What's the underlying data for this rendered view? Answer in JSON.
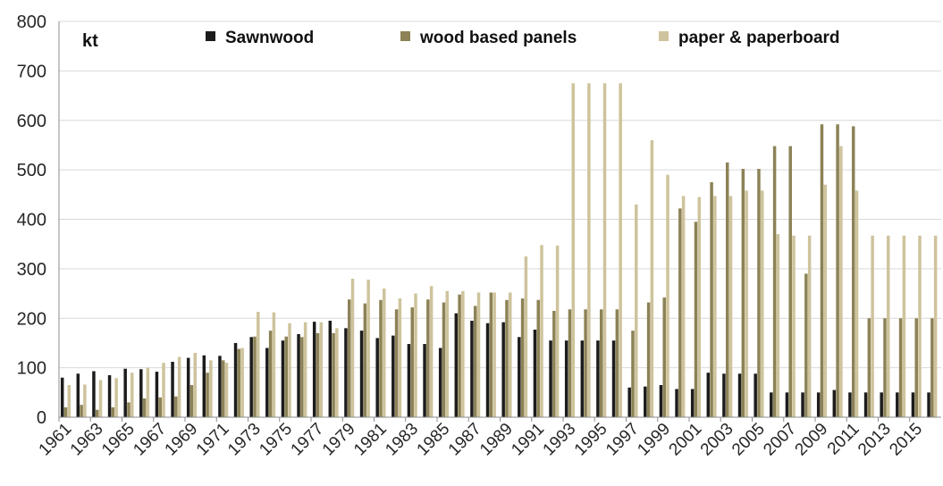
{
  "chart_data": {
    "type": "bar",
    "unit_label": "kt",
    "ylim": [
      0,
      800
    ],
    "y_ticks": [
      0,
      100,
      200,
      300,
      400,
      500,
      600,
      700,
      800
    ],
    "grid": true,
    "legend_position": "top",
    "categories": [
      1961,
      1962,
      1963,
      1964,
      1965,
      1966,
      1967,
      1968,
      1969,
      1970,
      1971,
      1972,
      1973,
      1974,
      1975,
      1976,
      1977,
      1978,
      1979,
      1980,
      1981,
      1982,
      1983,
      1984,
      1985,
      1986,
      1987,
      1988,
      1989,
      1990,
      1991,
      1992,
      1993,
      1994,
      1995,
      1996,
      1997,
      1998,
      1999,
      2000,
      2001,
      2002,
      2003,
      2004,
      2005,
      2006,
      2007,
      2008,
      2009,
      2010,
      2011,
      2012,
      2013,
      2014,
      2015,
      2016
    ],
    "x_tick_labels": [
      "1961",
      "1963",
      "1965",
      "1967",
      "1969",
      "1971",
      "1973",
      "1975",
      "1977",
      "1979",
      "1981",
      "1983",
      "1985",
      "1987",
      "1989",
      "1991",
      "1993",
      "1995",
      "1997",
      "1999",
      "2001",
      "2003",
      "2005",
      "2007",
      "2009",
      "2011",
      "2013",
      "2015"
    ],
    "series": [
      {
        "name": "Sawnwood",
        "color": "#1c1c1c",
        "values": [
          80,
          88,
          93,
          85,
          98,
          97,
          92,
          112,
          120,
          125,
          124,
          150,
          162,
          140,
          155,
          168,
          193,
          195,
          180,
          175,
          160,
          165,
          148,
          148,
          140,
          210,
          195,
          190,
          192,
          162,
          177,
          155,
          155,
          155,
          155,
          155,
          60,
          62,
          65,
          57,
          57,
          90,
          88,
          88,
          88,
          50,
          50,
          50,
          50,
          55,
          50,
          50,
          50,
          50,
          50,
          50
        ]
      },
      {
        "name": "wood based panels",
        "color": "#8c8256",
        "values": [
          20,
          25,
          15,
          20,
          30,
          38,
          40,
          42,
          65,
          90,
          115,
          138,
          163,
          175,
          163,
          162,
          170,
          170,
          238,
          230,
          237,
          218,
          222,
          238,
          232,
          248,
          225,
          252,
          237,
          240,
          237,
          215,
          218,
          218,
          218,
          218,
          175,
          232,
          242,
          422,
          395,
          475,
          515,
          502,
          502,
          548,
          548,
          290,
          592,
          592,
          588,
          200,
          200,
          200,
          200,
          200
        ]
      },
      {
        "name": "paper & paperboard",
        "color": "#cec39c",
        "values": [
          65,
          66,
          75,
          79,
          90,
          100,
          110,
          122,
          130,
          115,
          110,
          140,
          213,
          212,
          190,
          192,
          192,
          180,
          280,
          278,
          260,
          240,
          250,
          265,
          255,
          255,
          252,
          252,
          252,
          325,
          348,
          347,
          675,
          675,
          675,
          675,
          430,
          560,
          490,
          447,
          445,
          447,
          447,
          458,
          458,
          370,
          367,
          367,
          470,
          548,
          458,
          367,
          367,
          367,
          367,
          367
        ]
      }
    ]
  }
}
